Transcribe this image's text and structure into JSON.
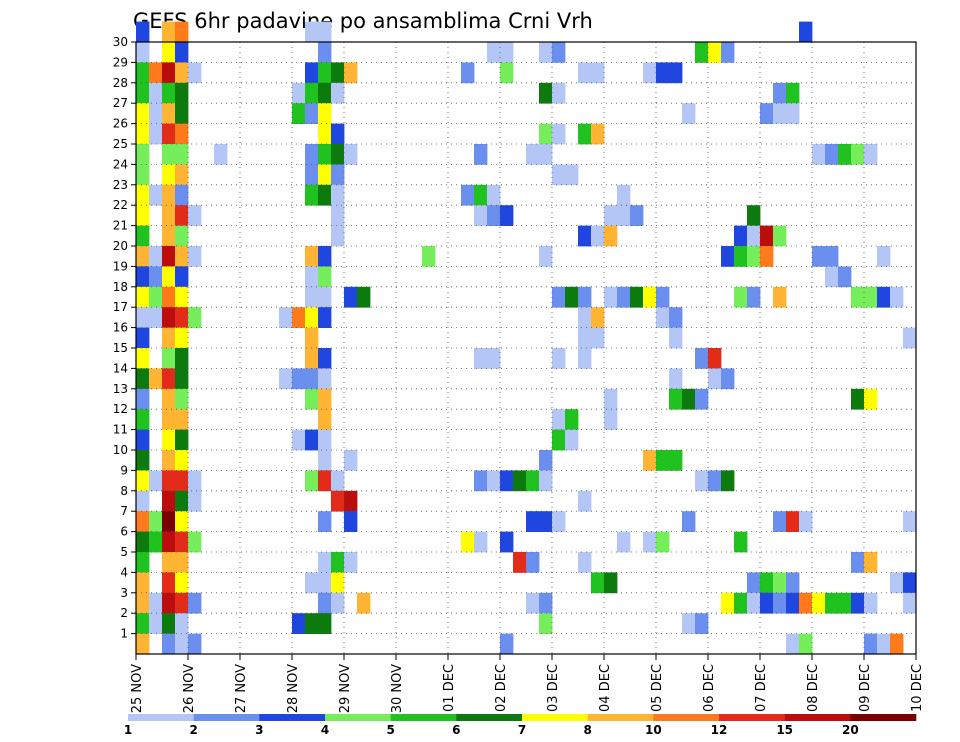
{
  "chart_data": {
    "type": "heatmap",
    "title": "GEFS 6hr padavine po ansamblima Crni Vrh",
    "xlabel": "",
    "ylabel": "",
    "x_ticks": [
      "25 NOV",
      "26 NOV",
      "27 NOV",
      "28 NOV",
      "29 NOV",
      "30 NOV",
      "01 DEC",
      "02 DEC",
      "03 DEC",
      "04 DEC",
      "05 DEC",
      "06 DEC",
      "07 DEC",
      "08 DEC",
      "09 DEC",
      "10 DEC"
    ],
    "y_ticks": [
      1,
      2,
      3,
      4,
      5,
      6,
      7,
      8,
      9,
      10,
      11,
      12,
      13,
      14,
      15,
      16,
      17,
      18,
      19,
      20,
      21,
      22,
      23,
      24,
      25,
      26,
      27,
      28,
      29,
      30
    ],
    "xlim_steps": [
      0,
      60
    ],
    "ylim": [
      0,
      30
    ],
    "steps_per_day": 4,
    "grid": true,
    "colorbar": {
      "position": "bottom",
      "colors": [
        "#b3c6f5",
        "#6b8fee",
        "#1f47e0",
        "#76ee5c",
        "#1fc21f",
        "#0d7a0d",
        "#ffff00",
        "#ffb533",
        "#ff7a1a",
        "#e32b1a",
        "#bb0d0d",
        "#7a0000"
      ],
      "labels": [
        "1",
        "2",
        "3",
        "4",
        "5",
        "6",
        "7",
        "8",
        "10",
        "12",
        "15",
        "20"
      ]
    },
    "cells": [
      {
        "m": 30,
        "v": {
          "0": 3,
          "2": 8,
          "3": 9,
          "13": 1,
          "14": 1,
          "51": 3
        }
      },
      {
        "m": 29,
        "v": {
          "0": 1,
          "2": 7,
          "3": 3,
          "14": 2,
          "27": 1,
          "28": 1,
          "31": 1,
          "32": 2,
          "43": 5,
          "44": 7,
          "45": 2
        }
      },
      {
        "m": 28,
        "v": {
          "0": 5,
          "1": 9,
          "2": 11,
          "3": 8,
          "4": 1,
          "13": 3,
          "14": 5,
          "15": 6,
          "16": 8,
          "25": 2,
          "28": 4,
          "34": 1,
          "35": 1,
          "39": 1,
          "40": 3,
          "41": 3
        }
      },
      {
        "m": 27,
        "v": {
          "0": 5,
          "1": 1,
          "2": 5,
          "3": 6,
          "12": 1,
          "13": 5,
          "14": 6,
          "15": 1,
          "31": 6,
          "32": 1,
          "49": 2,
          "50": 5
        }
      },
      {
        "m": 26,
        "v": {
          "0": 7,
          "1": 1,
          "2": 8,
          "3": 6,
          "12": 5,
          "13": 2,
          "14": 7,
          "42": 1,
          "48": 2,
          "49": 1,
          "50": 1
        }
      },
      {
        "m": 25,
        "v": {
          "0": 7,
          "1": 1,
          "2": 10,
          "3": 9,
          "14": 7,
          "15": 3,
          "31": 4,
          "32": 1,
          "34": 5,
          "35": 8
        }
      },
      {
        "m": 24,
        "v": {
          "0": 4,
          "2": 4,
          "3": 4,
          "6": 1,
          "13": 2,
          "14": 5,
          "15": 6,
          "16": 1,
          "26": 2,
          "30": 1,
          "31": 1,
          "52": 1,
          "53": 2,
          "54": 5,
          "55": 4,
          "56": 1
        }
      },
      {
        "m": 23,
        "v": {
          "0": 4,
          "2": 7,
          "3": 8,
          "13": 2,
          "14": 7,
          "15": 2,
          "32": 1,
          "33": 1
        }
      },
      {
        "m": 22,
        "v": {
          "0": 7,
          "1": 1,
          "2": 8,
          "3": 2,
          "13": 5,
          "14": 6,
          "15": 1,
          "25": 2,
          "26": 5,
          "27": 1,
          "37": 1
        }
      },
      {
        "m": 21,
        "v": {
          "0": 7,
          "2": 8,
          "3": 10,
          "4": 1,
          "15": 1,
          "26": 1,
          "27": 2,
          "28": 3,
          "36": 1,
          "37": 1,
          "38": 2,
          "47": 6
        }
      },
      {
        "m": 20,
        "v": {
          "0": 5,
          "2": 8,
          "3": 4,
          "15": 1,
          "34": 3,
          "35": 1,
          "36": 8,
          "46": 3,
          "47": 1,
          "48": 11,
          "49": 4
        }
      },
      {
        "m": 19,
        "v": {
          "0": 8,
          "1": 1,
          "2": 11,
          "3": 8,
          "4": 1,
          "13": 8,
          "14": 3,
          "22": 4,
          "31": 1,
          "45": 3,
          "46": 5,
          "47": 4,
          "48": 9,
          "52": 2,
          "53": 2,
          "57": 1
        }
      },
      {
        "m": 18,
        "v": {
          "0": 3,
          "1": 2,
          "2": 7,
          "3": 3,
          "13": 1,
          "14": 4,
          "53": 1,
          "54": 2
        }
      },
      {
        "m": 17,
        "v": {
          "0": 7,
          "1": 4,
          "2": 9,
          "3": 7,
          "13": 1,
          "14": 1,
          "16": 3,
          "17": 6,
          "32": 2,
          "33": 6,
          "34": 2,
          "36": 1,
          "37": 2,
          "38": 6,
          "39": 7,
          "40": 2,
          "46": 4,
          "47": 2,
          "49": 8,
          "55": 4,
          "56": 4,
          "57": 3,
          "58": 1
        }
      },
      {
        "m": 16,
        "v": {
          "0": 1,
          "1": 1,
          "2": 11,
          "3": 10,
          "4": 4,
          "11": 1,
          "12": 9,
          "13": 7,
          "14": 3,
          "34": 1,
          "35": 8,
          "40": 1,
          "41": 2
        }
      },
      {
        "m": 15,
        "v": {
          "0": 3,
          "2": 8,
          "3": 7,
          "13": 8,
          "34": 1,
          "35": 1,
          "41": 1,
          "59": 1
        }
      },
      {
        "m": 14,
        "v": {
          "0": 7,
          "2": 4,
          "3": 6,
          "13": 8,
          "14": 3,
          "26": 1,
          "27": 1,
          "32": 1,
          "34": 1,
          "43": 2,
          "44": 10
        }
      },
      {
        "m": 13,
        "v": {
          "0": 6,
          "1": 8,
          "2": 10,
          "3": 6,
          "11": 1,
          "12": 2,
          "13": 2,
          "14": 1,
          "41": 1,
          "44": 1,
          "45": 2
        }
      },
      {
        "m": 12,
        "v": {
          "0": 2,
          "2": 8,
          "3": 4,
          "13": 4,
          "14": 8,
          "36": 1,
          "41": 5,
          "42": 6,
          "43": 2,
          "55": 6,
          "56": 7
        }
      },
      {
        "m": 11,
        "v": {
          "0": 5,
          "2": 8,
          "3": 8,
          "14": 8,
          "32": 1,
          "33": 5,
          "36": 1
        }
      },
      {
        "m": 10,
        "v": {
          "0": 3,
          "2": 7,
          "3": 6,
          "12": 1,
          "13": 3,
          "14": 1,
          "32": 5,
          "33": 1
        }
      },
      {
        "m": 9,
        "v": {
          "0": 6,
          "2": 8,
          "3": 7,
          "14": 1,
          "16": 1,
          "31": 2,
          "39": 8,
          "40": 5,
          "41": 5
        }
      },
      {
        "m": 8,
        "v": {
          "0": 7,
          "1": 1,
          "2": 10,
          "3": 10,
          "4": 1,
          "13": 4,
          "14": 10,
          "15": 1,
          "26": 2,
          "27": 1,
          "28": 3,
          "29": 6,
          "30": 5,
          "31": 1,
          "43": 1,
          "44": 2,
          "45": 6
        }
      },
      {
        "m": 7,
        "v": {
          "0": 1,
          "2": 11,
          "3": 6,
          "4": 1,
          "15": 10,
          "16": 11,
          "34": 1
        }
      },
      {
        "m": 6,
        "v": {
          "0": 9,
          "1": 4,
          "2": 12,
          "3": 7,
          "14": 2,
          "16": 3,
          "30": 3,
          "31": 3,
          "32": 1,
          "42": 2,
          "49": 2,
          "50": 10,
          "51": 1,
          "59": 1
        }
      },
      {
        "m": 5,
        "v": {
          "0": 6,
          "1": 5,
          "2": 11,
          "3": 10,
          "4": 4,
          "25": 7,
          "26": 1,
          "28": 3,
          "37": 1,
          "39": 1,
          "40": 4,
          "46": 5
        }
      },
      {
        "m": 4,
        "v": {
          "0": 5,
          "2": 8,
          "3": 8,
          "14": 1,
          "15": 5,
          "16": 1,
          "29": 10,
          "30": 2,
          "34": 1,
          "55": 2,
          "56": 8
        }
      },
      {
        "m": 3,
        "v": {
          "0": 8,
          "2": 10,
          "3": 7,
          "13": 1,
          "14": 1,
          "15": 7,
          "35": 5,
          "36": 6,
          "47": 2,
          "48": 5,
          "49": 4,
          "50": 2,
          "58": 1,
          "59": 3
        }
      },
      {
        "m": 2,
        "v": {
          "0": 8,
          "1": 1,
          "2": 11,
          "3": 10,
          "4": 2,
          "14": 2,
          "15": 1,
          "17": 8,
          "30": 1,
          "31": 2,
          "45": 7,
          "46": 5,
          "47": 1,
          "48": 3,
          "49": 2,
          "50": 3,
          "51": 9,
          "52": 7,
          "53": 5,
          "54": 5,
          "55": 3,
          "56": 1,
          "59": 1
        }
      },
      {
        "m": 1,
        "v": {
          "0": 5,
          "1": 1,
          "2": 6,
          "3": 1,
          "12": 3,
          "13": 6,
          "14": 6,
          "31": 4,
          "42": 1,
          "43": 2
        }
      },
      {
        "m": 0,
        "v": {
          "0": 8,
          "2": 2,
          "3": 1,
          "4": 2,
          "28": 2,
          "50": 1,
          "51": 4,
          "56": 2,
          "57": 1,
          "58": 9
        }
      }
    ]
  }
}
